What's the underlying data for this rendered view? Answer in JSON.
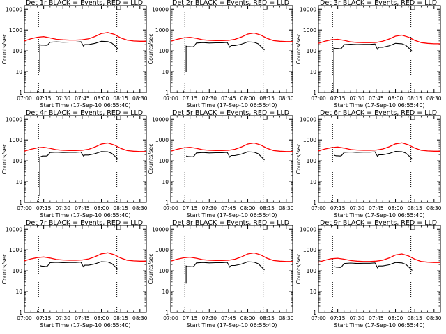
{
  "shared": {
    "ylabel": "Counts/sec",
    "xlabel": "Start Time (17-Sep-10 06:55:40)",
    "x_ticks": [
      "07:00",
      "07:15",
      "07:30",
      "07:45",
      "08:00",
      "08:15",
      "08:30"
    ],
    "y_ticks": [
      "1",
      "10",
      "100",
      "1000",
      "10000"
    ],
    "colors": {
      "events": "#000000",
      "lld": "#ff0000",
      "axes": "#000000"
    }
  },
  "chart_data": [
    {
      "type": "line",
      "title": "Det 1r BLACK = Events, RED = LLD",
      "y_scale": "log",
      "xlim": [
        "07:00",
        "08:35"
      ],
      "ylim": [
        1,
        15000
      ],
      "vlines": [
        "07:11",
        "08:12"
      ],
      "series": [
        {
          "name": "Events",
          "x": [
            "07:12",
            "07:12",
            "07:13",
            "07:14",
            "07:15",
            "07:17",
            "07:18",
            "07:20",
            "07:25",
            "07:30",
            "07:35",
            "07:40",
            "07:44",
            "07:46",
            "07:47",
            "07:50",
            "07:55",
            "08:00",
            "08:05",
            "08:08",
            "08:10",
            "08:13"
          ],
          "values": [
            10,
            200,
            190,
            190,
            190,
            185,
            190,
            260,
            270,
            260,
            265,
            265,
            275,
            170,
            200,
            200,
            230,
            290,
            280,
            240,
            190,
            120
          ]
        },
        {
          "name": "LLD",
          "x": [
            "07:00",
            "07:05",
            "07:10",
            "07:15",
            "07:20",
            "07:25",
            "07:30",
            "07:35",
            "07:40",
            "07:45",
            "07:50",
            "07:55",
            "08:00",
            "08:05",
            "08:10",
            "08:15",
            "08:20",
            "08:25",
            "08:30",
            "08:35"
          ],
          "values": [
            300,
            380,
            450,
            480,
            420,
            360,
            340,
            330,
            330,
            340,
            380,
            490,
            680,
            760,
            620,
            420,
            330,
            300,
            290,
            290
          ]
        }
      ]
    },
    {
      "type": "line",
      "title": "Det 2r BLACK = Events, RED = LLD",
      "y_scale": "log",
      "xlim": [
        "07:00",
        "08:35"
      ],
      "ylim": [
        1,
        15000
      ],
      "vlines": [
        "07:11",
        "08:12"
      ],
      "series": [
        {
          "name": "Events",
          "x": [
            "07:12",
            "07:12",
            "07:13",
            "07:14",
            "07:15",
            "07:17",
            "07:18",
            "07:20",
            "07:25",
            "07:30",
            "07:35",
            "07:40",
            "07:44",
            "07:46",
            "07:47",
            "07:50",
            "07:55",
            "08:00",
            "08:05",
            "08:08",
            "08:10",
            "08:13"
          ],
          "values": [
            10,
            170,
            160,
            160,
            160,
            155,
            165,
            240,
            250,
            240,
            245,
            245,
            255,
            150,
            180,
            180,
            210,
            270,
            260,
            220,
            170,
            110
          ]
        },
        {
          "name": "LLD",
          "x": [
            "07:00",
            "07:05",
            "07:10",
            "07:15",
            "07:20",
            "07:25",
            "07:30",
            "07:35",
            "07:40",
            "07:45",
            "07:50",
            "07:55",
            "08:00",
            "08:05",
            "08:10",
            "08:15",
            "08:20",
            "08:25",
            "08:30",
            "08:35"
          ],
          "values": [
            290,
            360,
            420,
            450,
            400,
            340,
            320,
            310,
            310,
            320,
            360,
            460,
            640,
            720,
            580,
            400,
            310,
            290,
            280,
            280
          ]
        }
      ]
    },
    {
      "type": "line",
      "title": "Det 3r BLACK = Events, RED = LLD",
      "y_scale": "log",
      "xlim": [
        "07:00",
        "08:35"
      ],
      "ylim": [
        1,
        15000
      ],
      "vlines": [
        "07:11",
        "08:12"
      ],
      "series": [
        {
          "name": "Events",
          "x": [
            "07:12",
            "07:12",
            "07:13",
            "07:14",
            "07:15",
            "07:17",
            "07:18",
            "07:20",
            "07:25",
            "07:30",
            "07:35",
            "07:40",
            "07:44",
            "07:46",
            "07:47",
            "07:50",
            "07:55",
            "08:00",
            "08:05",
            "08:08",
            "08:10",
            "08:13"
          ],
          "values": [
            1,
            140,
            130,
            130,
            130,
            125,
            135,
            200,
            210,
            200,
            205,
            205,
            215,
            120,
            150,
            150,
            175,
            230,
            220,
            185,
            145,
            95
          ]
        },
        {
          "name": "LLD",
          "x": [
            "07:00",
            "07:05",
            "07:10",
            "07:15",
            "07:20",
            "07:25",
            "07:30",
            "07:35",
            "07:40",
            "07:45",
            "07:50",
            "07:55",
            "08:00",
            "08:05",
            "08:10",
            "08:15",
            "08:20",
            "08:25",
            "08:30",
            "08:35"
          ],
          "values": [
            230,
            290,
            340,
            360,
            320,
            270,
            255,
            250,
            250,
            255,
            290,
            370,
            510,
            570,
            460,
            320,
            250,
            230,
            220,
            220
          ]
        }
      ]
    },
    {
      "type": "line",
      "title": "Det 4r BLACK = Events, RED = LLD",
      "y_scale": "log",
      "xlim": [
        "07:00",
        "08:35"
      ],
      "ylim": [
        1,
        15000
      ],
      "vlines": [
        "07:11",
        "08:12"
      ],
      "series": [
        {
          "name": "Events",
          "x": [
            "07:12",
            "07:12",
            "07:13",
            "07:14",
            "07:15",
            "07:17",
            "07:18",
            "07:20",
            "07:25",
            "07:30",
            "07:35",
            "07:40",
            "07:44",
            "07:46",
            "07:47",
            "07:50",
            "07:55",
            "08:00",
            "08:05",
            "08:08",
            "08:10",
            "08:13"
          ],
          "values": [
            2,
            150,
            160,
            170,
            170,
            170,
            180,
            250,
            260,
            250,
            255,
            255,
            265,
            170,
            190,
            190,
            220,
            280,
            270,
            230,
            180,
            115
          ]
        },
        {
          "name": "LLD",
          "x": [
            "07:00",
            "07:05",
            "07:10",
            "07:15",
            "07:20",
            "07:25",
            "07:30",
            "07:35",
            "07:40",
            "07:45",
            "07:50",
            "07:55",
            "08:00",
            "08:05",
            "08:10",
            "08:15",
            "08:20",
            "08:25",
            "08:30",
            "08:35"
          ],
          "values": [
            290,
            360,
            420,
            450,
            400,
            340,
            320,
            310,
            310,
            320,
            360,
            460,
            640,
            720,
            580,
            400,
            310,
            290,
            280,
            280
          ]
        }
      ]
    },
    {
      "type": "line",
      "title": "Det 5r BLACK = Events, RED = LLD",
      "y_scale": "log",
      "xlim": [
        "07:00",
        "08:35"
      ],
      "ylim": [
        1,
        15000
      ],
      "vlines": [
        "07:11",
        "08:12"
      ],
      "series": [
        {
          "name": "Events",
          "x": [
            "07:12",
            "07:13",
            "07:14",
            "07:15",
            "07:17",
            "07:18",
            "07:20",
            "07:25",
            "07:30",
            "07:35",
            "07:40",
            "07:44",
            "07:46",
            "07:47",
            "07:50",
            "07:55",
            "08:00",
            "08:05",
            "08:08",
            "08:10",
            "08:13"
          ],
          "values": [
            170,
            165,
            160,
            160,
            155,
            165,
            240,
            250,
            240,
            245,
            245,
            255,
            150,
            180,
            180,
            210,
            270,
            260,
            220,
            170,
            110
          ]
        },
        {
          "name": "LLD",
          "x": [
            "07:00",
            "07:05",
            "07:10",
            "07:15",
            "07:20",
            "07:25",
            "07:30",
            "07:35",
            "07:40",
            "07:45",
            "07:50",
            "07:55",
            "08:00",
            "08:05",
            "08:10",
            "08:15",
            "08:20",
            "08:25",
            "08:30",
            "08:35"
          ],
          "values": [
            290,
            360,
            420,
            450,
            400,
            340,
            320,
            310,
            310,
            320,
            360,
            460,
            640,
            720,
            580,
            400,
            310,
            290,
            280,
            280
          ]
        }
      ]
    },
    {
      "type": "line",
      "title": "Det 6r BLACK = Events, RED = LLD",
      "y_scale": "log",
      "xlim": [
        "07:00",
        "08:35"
      ],
      "ylim": [
        1,
        15000
      ],
      "vlines": [
        "07:11",
        "08:12"
      ],
      "series": [
        {
          "name": "Events",
          "x": [
            "07:12",
            "07:13",
            "07:14",
            "07:15",
            "07:17",
            "07:18",
            "07:20",
            "07:25",
            "07:30",
            "07:35",
            "07:40",
            "07:44",
            "07:46",
            "07:47",
            "07:50",
            "07:55",
            "08:00",
            "08:05",
            "08:08",
            "08:10",
            "08:13"
          ],
          "values": [
            190,
            180,
            175,
            175,
            170,
            180,
            255,
            265,
            255,
            260,
            260,
            270,
            165,
            195,
            195,
            225,
            285,
            275,
            235,
            185,
            120
          ]
        },
        {
          "name": "LLD",
          "x": [
            "07:00",
            "07:05",
            "07:10",
            "07:15",
            "07:20",
            "07:25",
            "07:30",
            "07:35",
            "07:40",
            "07:45",
            "07:50",
            "07:55",
            "08:00",
            "08:05",
            "08:10",
            "08:15",
            "08:20",
            "08:25",
            "08:30",
            "08:35"
          ],
          "values": [
            300,
            370,
            430,
            460,
            410,
            350,
            330,
            320,
            320,
            330,
            370,
            470,
            650,
            730,
            590,
            410,
            320,
            300,
            290,
            290
          ]
        }
      ]
    },
    {
      "type": "line",
      "title": "Det 7r BLACK = Events, RED = LLD",
      "y_scale": "log",
      "xlim": [
        "07:00",
        "08:35"
      ],
      "ylim": [
        1,
        15000
      ],
      "vlines": [
        "07:11",
        "08:12"
      ],
      "series": [
        {
          "name": "Events",
          "x": [
            "07:12",
            "07:13",
            "07:14",
            "07:15",
            "07:17",
            "07:18",
            "07:20",
            "07:25",
            "07:30",
            "07:35",
            "07:40",
            "07:44",
            "07:46",
            "07:47",
            "07:50",
            "07:55",
            "08:00",
            "08:05",
            "08:08",
            "08:10",
            "08:13"
          ],
          "values": [
            180,
            170,
            165,
            165,
            160,
            170,
            245,
            255,
            245,
            250,
            250,
            260,
            155,
            185,
            185,
            215,
            275,
            265,
            225,
            175,
            115
          ]
        },
        {
          "name": "LLD",
          "x": [
            "07:00",
            "07:05",
            "07:10",
            "07:15",
            "07:20",
            "07:25",
            "07:30",
            "07:35",
            "07:40",
            "07:45",
            "07:50",
            "07:55",
            "08:00",
            "08:05",
            "08:10",
            "08:15",
            "08:20",
            "08:25",
            "08:30",
            "08:35"
          ],
          "values": [
            300,
            370,
            430,
            460,
            410,
            350,
            330,
            320,
            320,
            330,
            370,
            470,
            650,
            730,
            590,
            410,
            320,
            300,
            290,
            290
          ]
        }
      ]
    },
    {
      "type": "line",
      "title": "Det 8r BLACK = Events, RED = LLD",
      "y_scale": "log",
      "xlim": [
        "07:00",
        "08:35"
      ],
      "ylim": [
        1,
        15000
      ],
      "vlines": [
        "07:11",
        "08:12"
      ],
      "series": [
        {
          "name": "Events",
          "x": [
            "07:12",
            "07:12",
            "07:13",
            "07:14",
            "07:15",
            "07:17",
            "07:18",
            "07:20",
            "07:25",
            "07:30",
            "07:35",
            "07:40",
            "07:44",
            "07:46",
            "07:47",
            "07:50",
            "07:55",
            "08:00",
            "08:05",
            "08:08",
            "08:10",
            "08:13"
          ],
          "values": [
            25,
            170,
            160,
            160,
            160,
            155,
            165,
            240,
            250,
            240,
            245,
            245,
            255,
            150,
            180,
            180,
            210,
            270,
            260,
            220,
            170,
            110
          ]
        },
        {
          "name": "LLD",
          "x": [
            "07:00",
            "07:05",
            "07:10",
            "07:15",
            "07:20",
            "07:25",
            "07:30",
            "07:35",
            "07:40",
            "07:45",
            "07:50",
            "07:55",
            "08:00",
            "08:05",
            "08:10",
            "08:15",
            "08:20",
            "08:25",
            "08:30",
            "08:35"
          ],
          "values": [
            290,
            360,
            420,
            450,
            400,
            340,
            320,
            310,
            310,
            320,
            360,
            460,
            640,
            720,
            580,
            400,
            310,
            290,
            280,
            280
          ]
        }
      ]
    },
    {
      "type": "line",
      "title": "Det 9r BLACK = Events, RED = LLD",
      "y_scale": "log",
      "xlim": [
        "07:00",
        "08:35"
      ],
      "ylim": [
        1,
        15000
      ],
      "vlines": [
        "07:11",
        "08:12"
      ],
      "series": [
        {
          "name": "Events",
          "x": [
            "07:12",
            "07:13",
            "07:14",
            "07:15",
            "07:17",
            "07:18",
            "07:20",
            "07:25",
            "07:30",
            "07:35",
            "07:40",
            "07:44",
            "07:46",
            "07:47",
            "07:50",
            "07:55",
            "08:00",
            "08:05",
            "08:08",
            "08:10",
            "08:13"
          ],
          "values": [
            160,
            155,
            150,
            150,
            145,
            155,
            225,
            235,
            225,
            230,
            230,
            240,
            140,
            170,
            170,
            195,
            250,
            240,
            205,
            160,
            105
          ]
        },
        {
          "name": "LLD",
          "x": [
            "07:00",
            "07:05",
            "07:10",
            "07:15",
            "07:20",
            "07:25",
            "07:30",
            "07:35",
            "07:40",
            "07:45",
            "07:50",
            "07:55",
            "08:00",
            "08:05",
            "08:10",
            "08:15",
            "08:20",
            "08:25",
            "08:30",
            "08:35"
          ],
          "values": [
            260,
            320,
            380,
            400,
            360,
            310,
            290,
            280,
            280,
            290,
            320,
            410,
            570,
            640,
            520,
            360,
            280,
            260,
            250,
            250
          ]
        }
      ]
    }
  ]
}
